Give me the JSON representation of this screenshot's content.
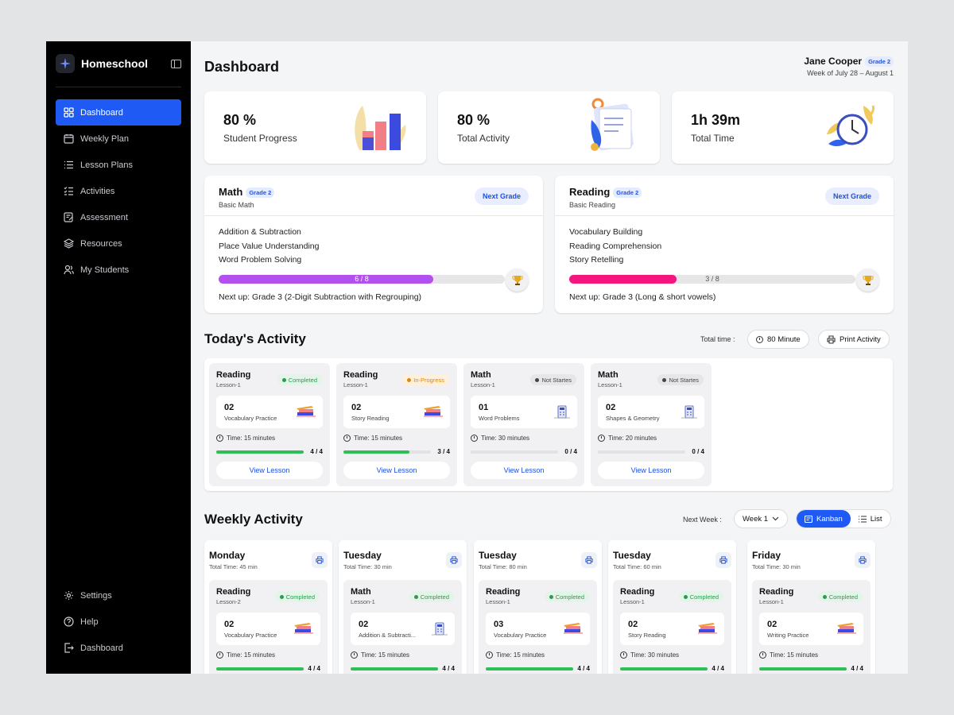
{
  "app": {
    "name": "Homeschool"
  },
  "sidebar": {
    "items": [
      {
        "label": "Dashboard",
        "icon": "grid-icon",
        "active": true
      },
      {
        "label": "Weekly Plan",
        "icon": "calendar-icon"
      },
      {
        "label": "Lesson Plans",
        "icon": "list-icon"
      },
      {
        "label": "Activities",
        "icon": "checklist-icon"
      },
      {
        "label": "Assessment",
        "icon": "edit-doc-icon"
      },
      {
        "label": "Resources",
        "icon": "layers-icon"
      },
      {
        "label": "My Students",
        "icon": "users-icon"
      }
    ],
    "bottom": [
      {
        "label": "Settings",
        "icon": "gear-icon"
      },
      {
        "label": "Help",
        "icon": "help-icon"
      },
      {
        "label": "Dashboard",
        "icon": "logout-icon"
      }
    ]
  },
  "header": {
    "title": "Dashboard",
    "user_name": "Jane Cooper",
    "grade": "Grade 2",
    "week": "Week of July 28 – August 1"
  },
  "stats": [
    {
      "value": "80 %",
      "label": "Student Progress",
      "art": "bar-chart-illustration"
    },
    {
      "value": "80 %",
      "label": "Total Activity",
      "art": "clipboard-illustration"
    },
    {
      "value": "1h 39m",
      "label": "Total Time",
      "art": "clock-illustration"
    }
  ],
  "subjects": [
    {
      "title": "Math",
      "grade": "Grade 2",
      "subtitle": "Basic Math",
      "button": "Next Grade",
      "topics": [
        "Addition & Subtraction",
        "Place Value Understanding",
        "Word Problem Solving"
      ],
      "progress_text": "6 / 8",
      "progress": 0.75,
      "color": "#b251f0",
      "next_up": "Next up: Grade 3 (2-Digit Subtraction with Regrouping)"
    },
    {
      "title": "Reading",
      "grade": "Grade 2",
      "subtitle": "Basic Reading",
      "button": "Next Grade",
      "topics": [
        "Vocabulary Building",
        "Reading Comprehension",
        "Story Retelling"
      ],
      "progress_text": "3 / 8",
      "progress": 0.375,
      "color": "#f5157d",
      "next_up": "Next up: Grade 3 (Long & short vowels)"
    }
  ],
  "today": {
    "title": "Today's Activity",
    "total_label": "Total time :",
    "total_value": "80 Minute",
    "print_label": "Print Activity",
    "cards": [
      {
        "subject": "Reading",
        "lesson": "Lesson-1",
        "status": "Completed",
        "status_class": "completed",
        "num": "02",
        "name": "Vocabulary Practice",
        "time": "Time: 15 minutes",
        "count": "4 / 4",
        "progress": 1,
        "view": "View Lesson",
        "art": "pencil-books"
      },
      {
        "subject": "Reading",
        "lesson": "Lesson-1",
        "status": "In-Progress",
        "status_class": "progress",
        "num": "02",
        "name": "Story Reading",
        "time": "Time: 15 minutes",
        "count": "3 / 4",
        "progress": 0.75,
        "view": "View Lesson",
        "art": "pencil-books"
      },
      {
        "subject": "Math",
        "lesson": "Lesson-1",
        "status": "Not Startes",
        "status_class": "notstarted",
        "num": "01",
        "name": "Word Problems",
        "time": "Time: 30 minutes",
        "count": "0 / 4",
        "progress": 0,
        "view": "View Lesson",
        "art": "calculator"
      },
      {
        "subject": "Math",
        "lesson": "Lesson-1",
        "status": "Not Startes",
        "status_class": "notstarted",
        "num": "02",
        "name": "Shapes & Geometry",
        "time": "Time: 20 minutes",
        "count": "0 / 4",
        "progress": 0,
        "view": "View Lesson",
        "art": "calculator"
      }
    ]
  },
  "weekly": {
    "title": "Weekly Activity",
    "next_label": "Next Week :",
    "week_select": "Week 1",
    "kanban": "Kanban",
    "list": "List",
    "days": [
      {
        "day": "Monday",
        "total": "Total Time: 45 min",
        "card": {
          "subject": "Reading",
          "lesson": "Lesson-2",
          "status": "Completed",
          "num": "02",
          "name": "Vocabulary Practice",
          "time": "Time: 15 minutes",
          "count": "4 / 4",
          "progress": 1,
          "art": "pencil-books"
        }
      },
      {
        "day": "Tuesday",
        "total": "Total Time: 30 min",
        "card": {
          "subject": "Math",
          "lesson": "Lesson-1",
          "status": "Completed",
          "num": "02",
          "name": "Addition & Subtracti...",
          "time": "Time: 15 minutes",
          "count": "4 / 4",
          "progress": 1,
          "art": "calculator"
        }
      },
      {
        "day": "Tuesday",
        "total": "Total Time: 80 min",
        "card": {
          "subject": "Reading",
          "lesson": "Lesson-1",
          "status": "Completed",
          "num": "03",
          "name": "Vocabulary Practice",
          "time": "Time: 15 minutes",
          "count": "4 / 4",
          "progress": 1,
          "art": "pencil-books"
        }
      },
      {
        "day": "Tuesday",
        "total": "Total Time: 60 min",
        "card": {
          "subject": "Reading",
          "lesson": "Lesson-1",
          "status": "Completed",
          "num": "02",
          "name": "Story Reading",
          "time": "Time: 30 minutes",
          "count": "4 / 4",
          "progress": 1,
          "art": "pencil-books"
        }
      },
      {
        "day": "Friday",
        "total": "Total Time: 30 min",
        "card": {
          "subject": "Reading",
          "lesson": "Lesson-1",
          "status": "Completed",
          "num": "02",
          "name": "Writing Practice",
          "time": "Time: 15 minutes",
          "count": "4 / 4",
          "progress": 1,
          "art": "pencil-books"
        }
      }
    ]
  },
  "colors": {
    "accent": "#1f5af5",
    "success": "#2fbf58",
    "math": "#b251f0",
    "reading": "#f5157d"
  }
}
